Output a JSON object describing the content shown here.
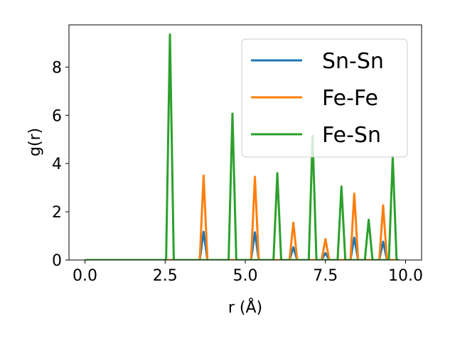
{
  "chart_data": {
    "type": "line",
    "title": "",
    "xlabel": "r (Å)",
    "ylabel": "g(r)",
    "xlim": [
      -0.5,
      10.5
    ],
    "ylim": [
      0,
      9.75
    ],
    "xticks": [
      0.0,
      2.5,
      5.0,
      7.5,
      10.0
    ],
    "xtick_labels": [
      "0.0",
      "2.5",
      "5.0",
      "7.5",
      "10.0"
    ],
    "yticks": [
      0,
      2,
      4,
      6,
      8
    ],
    "ytick_labels": [
      "0",
      "2",
      "4",
      "6",
      "8"
    ],
    "grid": false,
    "legend_position": "top-right",
    "x_range": [
      0,
      9.8
    ],
    "peak_half_width": 0.12,
    "series": [
      {
        "name": "Sn-Sn",
        "color": "#1f77b4",
        "peaks": [
          {
            "r": 3.7,
            "g": 1.17
          },
          {
            "r": 5.3,
            "g": 1.15
          },
          {
            "r": 6.5,
            "g": 0.53
          },
          {
            "r": 7.5,
            "g": 0.29
          },
          {
            "r": 8.4,
            "g": 0.93
          },
          {
            "r": 9.3,
            "g": 0.76
          }
        ]
      },
      {
        "name": "Fe-Fe",
        "color": "#ff7f0e",
        "peaks": [
          {
            "r": 3.7,
            "g": 3.5
          },
          {
            "r": 5.3,
            "g": 3.45
          },
          {
            "r": 6.5,
            "g": 1.55
          },
          {
            "r": 7.5,
            "g": 0.87
          },
          {
            "r": 8.4,
            "g": 2.75
          },
          {
            "r": 9.3,
            "g": 2.27
          }
        ]
      },
      {
        "name": "Fe-Sn",
        "color": "#2ca02c",
        "peaks": [
          {
            "r": 2.65,
            "g": 9.35
          },
          {
            "r": 4.6,
            "g": 6.07
          },
          {
            "r": 6.0,
            "g": 3.6
          },
          {
            "r": 7.1,
            "g": 5.15
          },
          {
            "r": 8.0,
            "g": 3.05
          },
          {
            "r": 8.85,
            "g": 1.67
          },
          {
            "r": 9.6,
            "g": 4.3
          }
        ]
      }
    ]
  }
}
